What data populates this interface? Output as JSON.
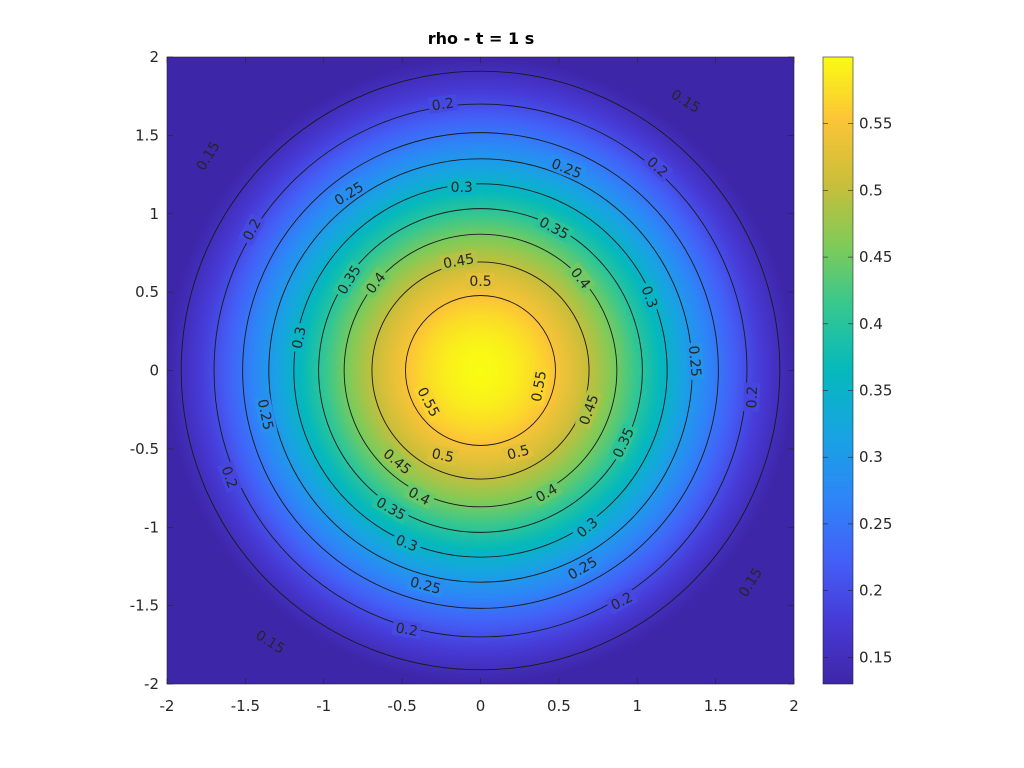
{
  "chart_data": {
    "type": "heatmap",
    "title": "rho - t = 1 s",
    "xlabel": "",
    "ylabel": "",
    "xlim": [
      -2,
      2
    ],
    "ylim": [
      -2,
      2
    ],
    "x_ticks": [
      "-2",
      "-1.5",
      "-1",
      "-0.5",
      "0",
      "0.5",
      "1",
      "1.5",
      "2"
    ],
    "y_ticks": [
      "2",
      "1.5",
      "1",
      "0.5",
      "0",
      "-0.5",
      "-1",
      "-1.5",
      "-2"
    ],
    "field": {
      "peak_value": 0.6,
      "min_value": 0.13,
      "center": [
        0,
        0
      ]
    },
    "contour_levels": [
      0.15,
      0.2,
      0.25,
      0.3,
      0.35,
      0.4,
      0.45,
      0.5,
      0.55
    ],
    "contour_labels": [
      {
        "text": "0.15",
        "x": -1.74,
        "y": 1.37,
        "angle": -58
      },
      {
        "text": "0.15",
        "x": 1.31,
        "y": 1.72,
        "angle": 32
      },
      {
        "text": "0.15",
        "x": 1.72,
        "y": -1.35,
        "angle": -58
      },
      {
        "text": "0.15",
        "x": -1.34,
        "y": -1.73,
        "angle": 32
      },
      {
        "text": "0.2",
        "x": -0.24,
        "y": 1.7,
        "angle": -8
      },
      {
        "text": "0.2",
        "x": 1.13,
        "y": 1.3,
        "angle": 42
      },
      {
        "text": "0.2",
        "x": -1.46,
        "y": 0.9,
        "angle": -62
      },
      {
        "text": "0.2",
        "x": 1.73,
        "y": -0.17,
        "angle": -88
      },
      {
        "text": "0.2",
        "x": -1.6,
        "y": -0.68,
        "angle": 70
      },
      {
        "text": "0.2",
        "x": 0.9,
        "y": -1.47,
        "angle": -28
      },
      {
        "text": "0.2",
        "x": -0.47,
        "y": -1.65,
        "angle": 10
      },
      {
        "text": "0.25",
        "x": 0.55,
        "y": 1.29,
        "angle": 22
      },
      {
        "text": "0.25",
        "x": -0.84,
        "y": 1.13,
        "angle": -32
      },
      {
        "text": "0.25",
        "x": 1.37,
        "y": 0.06,
        "angle": 85
      },
      {
        "text": "0.25",
        "x": -1.37,
        "y": -0.28,
        "angle": 78
      },
      {
        "text": "0.25",
        "x": 0.65,
        "y": -1.26,
        "angle": -30
      },
      {
        "text": "0.25",
        "x": -0.35,
        "y": -1.37,
        "angle": 15
      },
      {
        "text": "0.3",
        "x": -0.12,
        "y": 1.17,
        "angle": 0
      },
      {
        "text": "0.3",
        "x": 1.08,
        "y": 0.47,
        "angle": 70
      },
      {
        "text": "0.3",
        "x": -1.16,
        "y": 0.21,
        "angle": -78
      },
      {
        "text": "0.3",
        "x": 0.68,
        "y": -1.0,
        "angle": -40
      },
      {
        "text": "0.3",
        "x": -0.47,
        "y": -1.1,
        "angle": 22
      },
      {
        "text": "0.35",
        "x": 0.47,
        "y": 0.91,
        "angle": 28
      },
      {
        "text": "0.35",
        "x": -0.84,
        "y": 0.58,
        "angle": -58
      },
      {
        "text": "0.35",
        "x": 0.91,
        "y": -0.46,
        "angle": -65
      },
      {
        "text": "0.35",
        "x": -0.57,
        "y": -0.88,
        "angle": 30
      },
      {
        "text": "0.4",
        "x": 0.64,
        "y": 0.59,
        "angle": 52
      },
      {
        "text": "0.4",
        "x": -0.67,
        "y": 0.56,
        "angle": -52
      },
      {
        "text": "0.4",
        "x": 0.42,
        "y": -0.78,
        "angle": -30
      },
      {
        "text": "0.4",
        "x": -0.39,
        "y": -0.8,
        "angle": 28
      },
      {
        "text": "0.45",
        "x": -0.14,
        "y": 0.7,
        "angle": -10
      },
      {
        "text": "0.45",
        "x": 0.69,
        "y": -0.25,
        "angle": -70
      },
      {
        "text": "0.45",
        "x": -0.53,
        "y": -0.58,
        "angle": 40
      },
      {
        "text": "0.5",
        "x": 0.0,
        "y": 0.57,
        "angle": 0
      },
      {
        "text": "0.5",
        "x": -0.24,
        "y": -0.54,
        "angle": 12
      },
      {
        "text": "0.5",
        "x": 0.24,
        "y": -0.52,
        "angle": -15
      },
      {
        "text": "0.55",
        "x": 0.37,
        "y": -0.1,
        "angle": -80
      },
      {
        "text": "0.55",
        "x": -0.33,
        "y": -0.2,
        "angle": 62
      }
    ],
    "colorbar": {
      "range": [
        0.13,
        0.6
      ],
      "ticks": [
        0.15,
        0.2,
        0.25,
        0.3,
        0.35,
        0.4,
        0.45,
        0.5,
        0.55
      ],
      "tick_labels": [
        "0.15",
        "0.2",
        "0.25",
        "0.3",
        "0.35",
        "0.4",
        "0.45",
        "0.5",
        "0.55"
      ],
      "colormap": "parula"
    },
    "grid": false,
    "legend": "none"
  }
}
